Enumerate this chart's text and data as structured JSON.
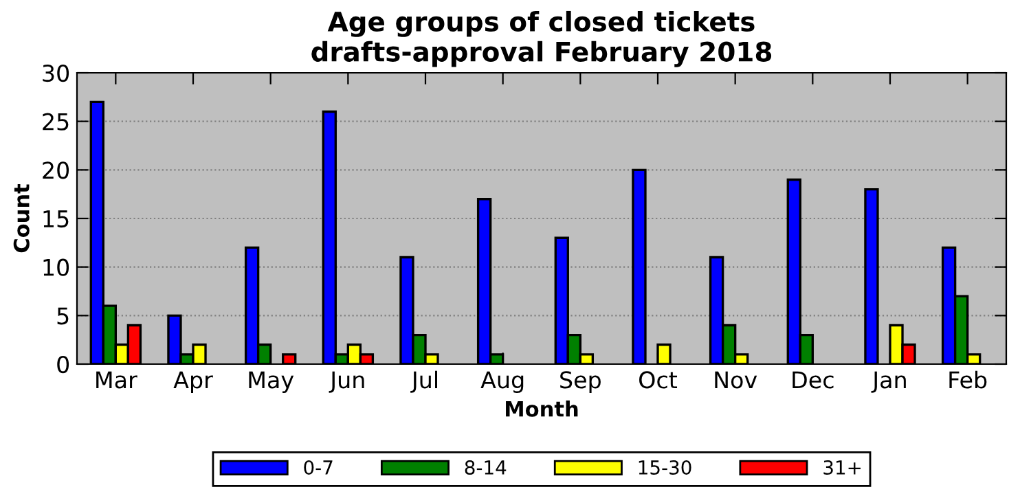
{
  "chart_data": {
    "type": "bar",
    "title": "Age groups of closed tickets\ndrafts-approval February 2018",
    "xlabel": "Month",
    "ylabel": "Count",
    "categories": [
      "Mar",
      "Apr",
      "May",
      "Jun",
      "Jul",
      "Aug",
      "Sep",
      "Oct",
      "Nov",
      "Dec",
      "Jan",
      "Feb"
    ],
    "series": [
      {
        "name": "0-7",
        "color": "#0000ff",
        "values": [
          27,
          5,
          12,
          26,
          11,
          17,
          13,
          20,
          11,
          19,
          18,
          12
        ]
      },
      {
        "name": "8-14",
        "color": "#008000",
        "values": [
          6,
          1,
          2,
          1,
          3,
          1,
          3,
          0,
          4,
          3,
          0,
          7
        ]
      },
      {
        "name": "15-30",
        "color": "#ffff00",
        "values": [
          2,
          2,
          0,
          2,
          1,
          0,
          1,
          2,
          1,
          0,
          4,
          1
        ]
      },
      {
        "name": "31+",
        "color": "#ff0000",
        "values": [
          4,
          0,
          1,
          1,
          0,
          0,
          0,
          0,
          0,
          0,
          2,
          0
        ]
      }
    ],
    "ylim": [
      0,
      30
    ],
    "yticks": [
      0,
      5,
      10,
      15,
      20,
      25,
      30
    ],
    "grid": "y",
    "legend": "bottom"
  }
}
